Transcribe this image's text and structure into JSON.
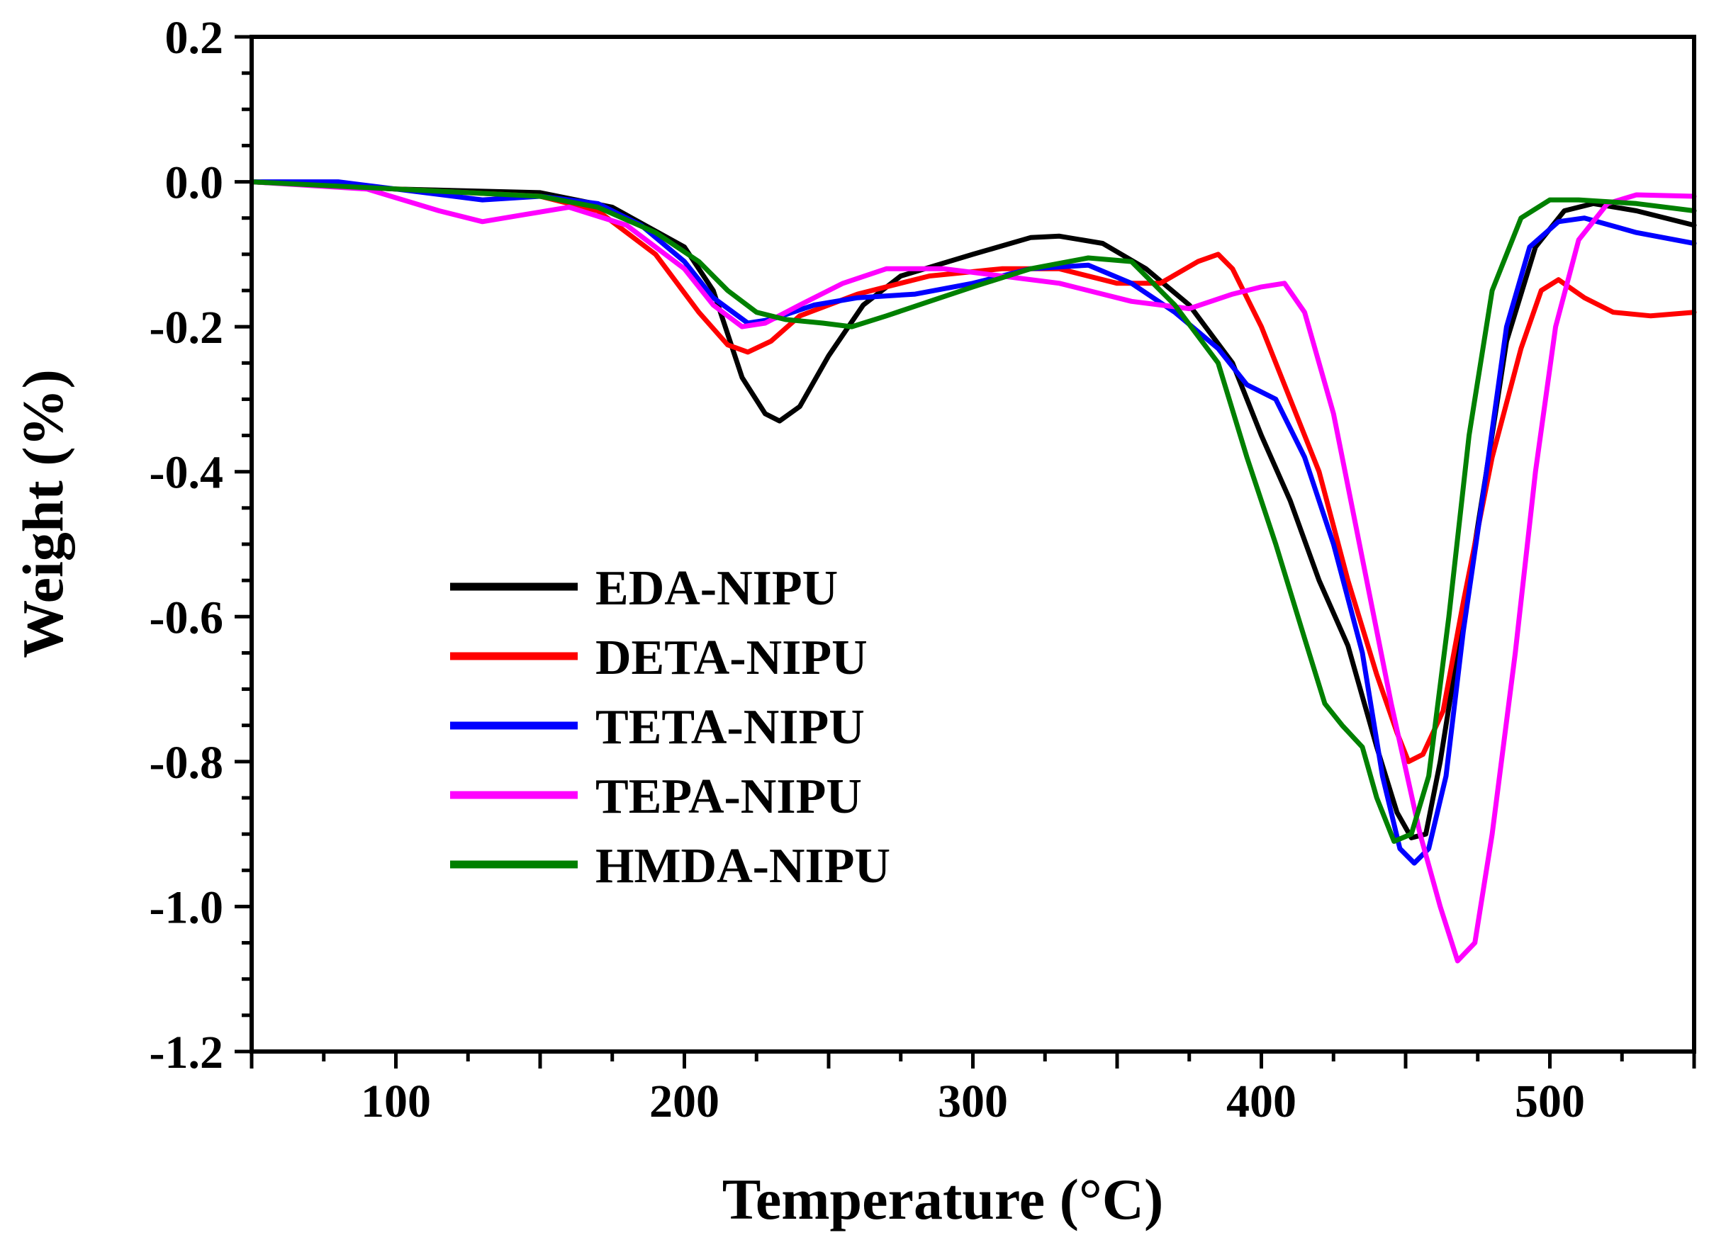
{
  "chart_data": {
    "type": "line",
    "title": "",
    "xlabel": "Temperature (°C)",
    "ylabel": "Weight (%)",
    "xlim": [
      50,
      550
    ],
    "ylim": [
      -1.2,
      0.2
    ],
    "x_major_ticks": [
      100,
      200,
      300,
      400,
      500
    ],
    "x_tick_labels": [
      "100",
      "200",
      "300",
      "400",
      "500"
    ],
    "y_major_ticks": [
      0.2,
      0.0,
      -0.2,
      -0.4,
      -0.6,
      -0.8,
      -1.0,
      -1.2
    ],
    "y_tick_labels": [
      "0.2",
      "0.0",
      "-0.2",
      "-0.4",
      "-0.6",
      "-0.8",
      "-1.0",
      "-1.2"
    ],
    "grid": false,
    "legend_position": "center-left",
    "series": [
      {
        "name": "EDA-NIPU",
        "color": "#000000",
        "points": [
          [
            50,
            0
          ],
          [
            100,
            -0.01
          ],
          [
            150,
            -0.015
          ],
          [
            175,
            -0.035
          ],
          [
            200,
            -0.09
          ],
          [
            210,
            -0.15
          ],
          [
            220,
            -0.27
          ],
          [
            228,
            -0.32
          ],
          [
            233,
            -0.33
          ],
          [
            240,
            -0.31
          ],
          [
            250,
            -0.24
          ],
          [
            262,
            -0.17
          ],
          [
            275,
            -0.13
          ],
          [
            300,
            -0.1
          ],
          [
            320,
            -0.077
          ],
          [
            330,
            -0.075
          ],
          [
            345,
            -0.085
          ],
          [
            360,
            -0.12
          ],
          [
            375,
            -0.17
          ],
          [
            390,
            -0.25
          ],
          [
            400,
            -0.35
          ],
          [
            410,
            -0.44
          ],
          [
            420,
            -0.55
          ],
          [
            430,
            -0.64
          ],
          [
            440,
            -0.78
          ],
          [
            447,
            -0.87
          ],
          [
            452,
            -0.905
          ],
          [
            457,
            -0.9
          ],
          [
            462,
            -0.8
          ],
          [
            470,
            -0.6
          ],
          [
            478,
            -0.4
          ],
          [
            485,
            -0.22
          ],
          [
            495,
            -0.09
          ],
          [
            505,
            -0.04
          ],
          [
            515,
            -0.03
          ],
          [
            530,
            -0.04
          ],
          [
            550,
            -0.06
          ]
        ]
      },
      {
        "name": "DETA-NIPU",
        "color": "#ff0000",
        "points": [
          [
            50,
            0
          ],
          [
            100,
            -0.01
          ],
          [
            150,
            -0.02
          ],
          [
            170,
            -0.04
          ],
          [
            190,
            -0.1
          ],
          [
            205,
            -0.18
          ],
          [
            215,
            -0.225
          ],
          [
            222,
            -0.235
          ],
          [
            230,
            -0.22
          ],
          [
            240,
            -0.185
          ],
          [
            260,
            -0.155
          ],
          [
            285,
            -0.13
          ],
          [
            310,
            -0.12
          ],
          [
            330,
            -0.12
          ],
          [
            350,
            -0.14
          ],
          [
            365,
            -0.14
          ],
          [
            378,
            -0.11
          ],
          [
            385,
            -0.1
          ],
          [
            390,
            -0.12
          ],
          [
            400,
            -0.2
          ],
          [
            410,
            -0.3
          ],
          [
            420,
            -0.4
          ],
          [
            430,
            -0.55
          ],
          [
            440,
            -0.68
          ],
          [
            447,
            -0.76
          ],
          [
            451,
            -0.8
          ],
          [
            456,
            -0.79
          ],
          [
            463,
            -0.73
          ],
          [
            470,
            -0.58
          ],
          [
            480,
            -0.38
          ],
          [
            490,
            -0.23
          ],
          [
            497,
            -0.15
          ],
          [
            503,
            -0.135
          ],
          [
            512,
            -0.16
          ],
          [
            522,
            -0.18
          ],
          [
            535,
            -0.185
          ],
          [
            550,
            -0.18
          ]
        ]
      },
      {
        "name": "TETA-NIPU",
        "color": "#0000ff",
        "points": [
          [
            50,
            0
          ],
          [
            80,
            0
          ],
          [
            100,
            -0.01
          ],
          [
            130,
            -0.025
          ],
          [
            150,
            -0.02
          ],
          [
            170,
            -0.03
          ],
          [
            185,
            -0.06
          ],
          [
            200,
            -0.11
          ],
          [
            210,
            -0.16
          ],
          [
            222,
            -0.195
          ],
          [
            230,
            -0.19
          ],
          [
            245,
            -0.17
          ],
          [
            260,
            -0.16
          ],
          [
            280,
            -0.155
          ],
          [
            300,
            -0.14
          ],
          [
            320,
            -0.12
          ],
          [
            340,
            -0.115
          ],
          [
            355,
            -0.14
          ],
          [
            370,
            -0.18
          ],
          [
            385,
            -0.23
          ],
          [
            395,
            -0.28
          ],
          [
            405,
            -0.3
          ],
          [
            415,
            -0.38
          ],
          [
            425,
            -0.5
          ],
          [
            435,
            -0.65
          ],
          [
            442,
            -0.82
          ],
          [
            448,
            -0.92
          ],
          [
            453,
            -0.94
          ],
          [
            458,
            -0.92
          ],
          [
            464,
            -0.82
          ],
          [
            470,
            -0.62
          ],
          [
            478,
            -0.4
          ],
          [
            485,
            -0.2
          ],
          [
            493,
            -0.09
          ],
          [
            503,
            -0.055
          ],
          [
            512,
            -0.05
          ],
          [
            530,
            -0.07
          ],
          [
            550,
            -0.085
          ]
        ]
      },
      {
        "name": "TEPA-NIPU",
        "color": "#ff00ff",
        "points": [
          [
            50,
            0
          ],
          [
            90,
            -0.01
          ],
          [
            115,
            -0.04
          ],
          [
            130,
            -0.055
          ],
          [
            145,
            -0.045
          ],
          [
            160,
            -0.035
          ],
          [
            180,
            -0.06
          ],
          [
            200,
            -0.12
          ],
          [
            210,
            -0.17
          ],
          [
            220,
            -0.2
          ],
          [
            228,
            -0.195
          ],
          [
            240,
            -0.17
          ],
          [
            255,
            -0.14
          ],
          [
            270,
            -0.12
          ],
          [
            290,
            -0.12
          ],
          [
            310,
            -0.13
          ],
          [
            330,
            -0.14
          ],
          [
            355,
            -0.165
          ],
          [
            375,
            -0.175
          ],
          [
            390,
            -0.155
          ],
          [
            400,
            -0.145
          ],
          [
            408,
            -0.14
          ],
          [
            415,
            -0.18
          ],
          [
            425,
            -0.32
          ],
          [
            435,
            -0.52
          ],
          [
            445,
            -0.72
          ],
          [
            455,
            -0.9
          ],
          [
            462,
            -1.0
          ],
          [
            468,
            -1.075
          ],
          [
            474,
            -1.05
          ],
          [
            480,
            -0.9
          ],
          [
            488,
            -0.65
          ],
          [
            495,
            -0.4
          ],
          [
            502,
            -0.2
          ],
          [
            510,
            -0.08
          ],
          [
            520,
            -0.03
          ],
          [
            530,
            -0.018
          ],
          [
            550,
            -0.02
          ]
        ]
      },
      {
        "name": "HMDA-NIPU",
        "color": "#008000",
        "points": [
          [
            50,
            0
          ],
          [
            100,
            -0.01
          ],
          [
            150,
            -0.02
          ],
          [
            170,
            -0.035
          ],
          [
            190,
            -0.07
          ],
          [
            205,
            -0.11
          ],
          [
            215,
            -0.15
          ],
          [
            225,
            -0.18
          ],
          [
            235,
            -0.19
          ],
          [
            248,
            -0.195
          ],
          [
            258,
            -0.2
          ],
          [
            270,
            -0.185
          ],
          [
            285,
            -0.165
          ],
          [
            300,
            -0.145
          ],
          [
            320,
            -0.12
          ],
          [
            340,
            -0.105
          ],
          [
            355,
            -0.11
          ],
          [
            370,
            -0.17
          ],
          [
            385,
            -0.25
          ],
          [
            395,
            -0.38
          ],
          [
            405,
            -0.5
          ],
          [
            415,
            -0.63
          ],
          [
            422,
            -0.72
          ],
          [
            428,
            -0.75
          ],
          [
            435,
            -0.78
          ],
          [
            440,
            -0.85
          ],
          [
            446,
            -0.91
          ],
          [
            452,
            -0.9
          ],
          [
            458,
            -0.82
          ],
          [
            465,
            -0.6
          ],
          [
            472,
            -0.35
          ],
          [
            480,
            -0.15
          ],
          [
            490,
            -0.05
          ],
          [
            500,
            -0.025
          ],
          [
            510,
            -0.025
          ],
          [
            530,
            -0.03
          ],
          [
            550,
            -0.04
          ]
        ]
      }
    ]
  }
}
